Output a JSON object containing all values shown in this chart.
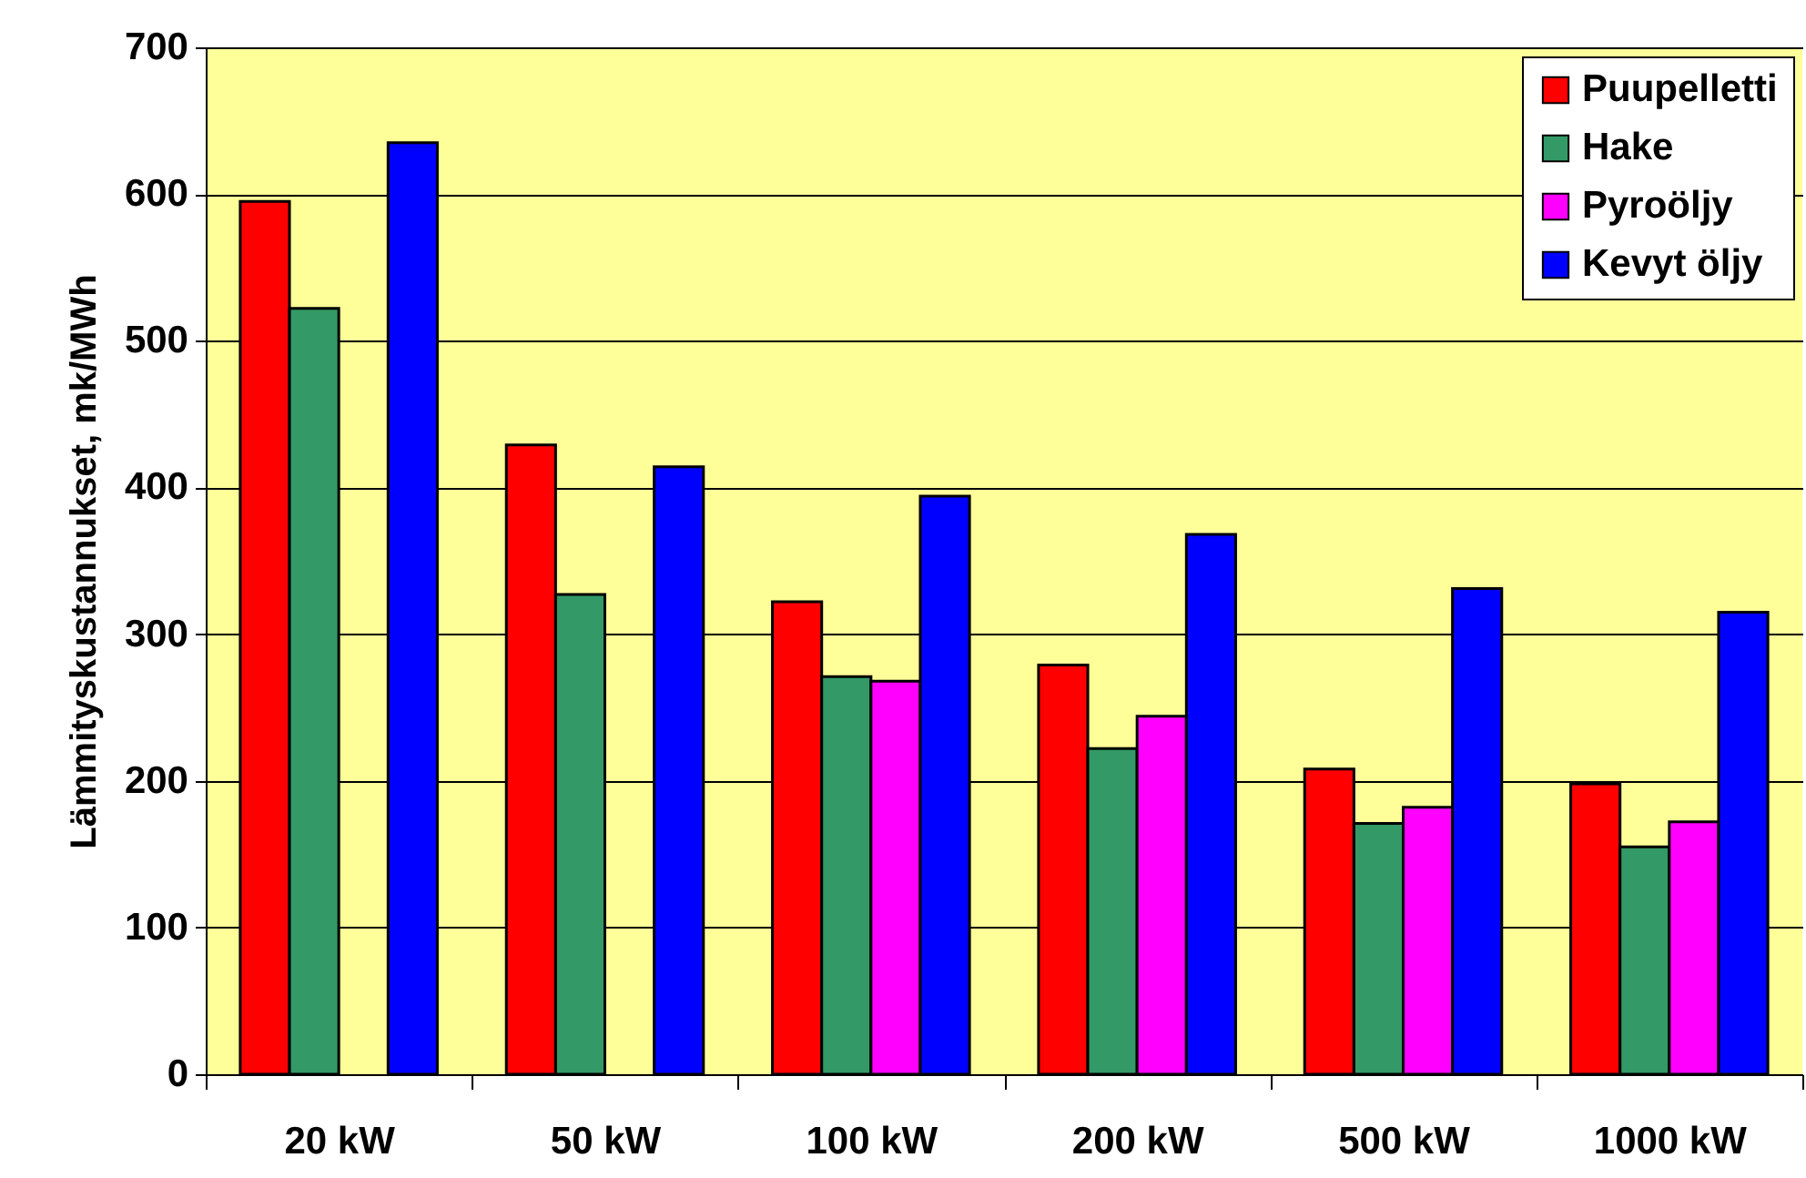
{
  "chart_data": {
    "type": "bar",
    "ylabel": "Lämmityskustannukset, mk/MWh",
    "categories": [
      "20 kW",
      "50 kW",
      "100 kW",
      "200 kW",
      "500 kW",
      "1000 kW"
    ],
    "series": [
      {
        "name": "Puupelletti",
        "color": "#ff0000",
        "values": [
          595,
          429,
          322,
          279,
          208,
          198
        ]
      },
      {
        "name": "Hake",
        "color": "#339966",
        "values": [
          522,
          327,
          271,
          222,
          171,
          155
        ]
      },
      {
        "name": "Pyroöljy",
        "color": "#ff00ff",
        "values": [
          null,
          null,
          268,
          244,
          182,
          172
        ]
      },
      {
        "name": "Kevyt öljy",
        "color": "#0000ff",
        "values": [
          635,
          414,
          394,
          368,
          331,
          315
        ]
      }
    ],
    "ylim": [
      0,
      700
    ],
    "yticks": [
      0,
      100,
      200,
      300,
      400,
      500,
      600,
      700
    ],
    "grid": "y",
    "legend": "top right"
  }
}
